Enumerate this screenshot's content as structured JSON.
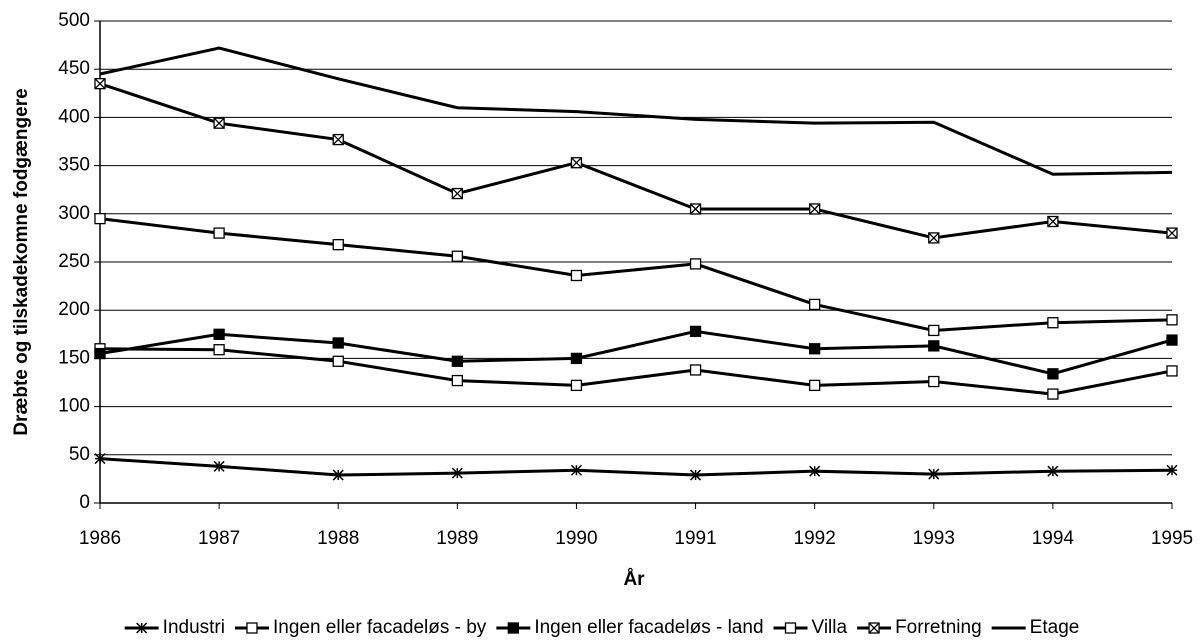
{
  "chart_data": {
    "type": "line",
    "x_label": "År",
    "y_label": "Dræbte og tilskadekomne fodgængere",
    "x": [
      1986,
      1987,
      1988,
      1989,
      1990,
      1991,
      1992,
      1993,
      1994,
      1995
    ],
    "xlim": [
      1986,
      1995
    ],
    "xticks": [
      1986,
      1987,
      1988,
      1989,
      1990,
      1991,
      1992,
      1993,
      1994,
      1995
    ],
    "ylim": [
      0,
      500
    ],
    "yticks": [
      0,
      50,
      100,
      150,
      200,
      250,
      300,
      350,
      400,
      450,
      500
    ],
    "grid": true,
    "legend": "bottom",
    "series": [
      {
        "name": "Industri",
        "color": "#000000",
        "marker": "asterisk",
        "values": [
          46,
          38,
          29,
          31,
          34,
          29,
          33,
          30,
          33,
          34
        ]
      },
      {
        "name": "Ingen eller facadeløs - by",
        "color": "#000000",
        "marker": "square-open",
        "values": [
          160,
          159,
          147,
          127,
          122,
          138,
          122,
          126,
          113,
          137
        ]
      },
      {
        "name": "Ingen eller facadeløs - land",
        "color": "#000000",
        "marker": "square-filled",
        "values": [
          155,
          175,
          166,
          147,
          150,
          178,
          160,
          163,
          134,
          169
        ]
      },
      {
        "name": "Villa",
        "color": "#000000",
        "marker": "square-open",
        "values": [
          295,
          280,
          268,
          256,
          236,
          248,
          206,
          179,
          187,
          190
        ]
      },
      {
        "name": "Forretning",
        "color": "#000000",
        "marker": "x-square",
        "values": [
          435,
          394,
          377,
          321,
          353,
          305,
          305,
          275,
          292,
          280
        ]
      },
      {
        "name": "Etage",
        "color": "#000000",
        "marker": "none",
        "values": [
          445,
          472,
          440,
          410,
          406,
          398,
          394,
          395,
          341,
          343
        ]
      }
    ]
  }
}
